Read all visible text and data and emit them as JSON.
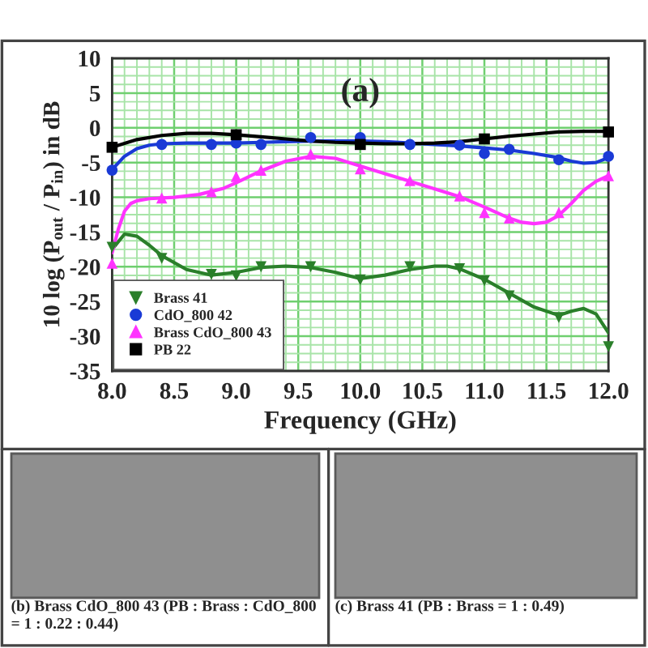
{
  "chart_data": {
    "type": "line",
    "title": "(a)",
    "xlabel": "Frequency (GHz)",
    "ylabel": "10 log (P$_{out}$ / P$_{in}$) in dB",
    "xlim": [
      8.0,
      12.0
    ],
    "xticks": [
      {
        "value": 8.0,
        "label": "8.0"
      },
      {
        "value": 8.1,
        "label": null
      },
      {
        "value": 8.2,
        "label": null
      },
      {
        "value": 8.3,
        "label": null
      },
      {
        "value": 8.4,
        "label": null
      },
      {
        "value": 8.5,
        "label": "8.5"
      },
      {
        "value": 8.6,
        "label": null
      },
      {
        "value": 8.7,
        "label": null
      },
      {
        "value": 8.8,
        "label": null
      },
      {
        "value": 8.9,
        "label": null
      },
      {
        "value": 9.0,
        "label": "9.0"
      },
      {
        "value": 9.1,
        "label": null
      },
      {
        "value": 9.2,
        "label": null
      },
      {
        "value": 9.3,
        "label": null
      },
      {
        "value": 9.4,
        "label": null
      },
      {
        "value": 9.5,
        "label": "9.5"
      },
      {
        "value": 9.6,
        "label": null
      },
      {
        "value": 9.7,
        "label": null
      },
      {
        "value": 9.8,
        "label": null
      },
      {
        "value": 9.9,
        "label": null
      },
      {
        "value": 10.0,
        "label": "10.0"
      },
      {
        "value": 10.1,
        "label": null
      },
      {
        "value": 10.2,
        "label": null
      },
      {
        "value": 10.3,
        "label": null
      },
      {
        "value": 10.4,
        "label": null
      },
      {
        "value": 10.5,
        "label": "10.5"
      },
      {
        "value": 10.6,
        "label": null
      },
      {
        "value": 10.7,
        "label": null
      },
      {
        "value": 10.8,
        "label": null
      },
      {
        "value": 10.9,
        "label": null
      },
      {
        "value": 11.0,
        "label": "11.0"
      },
      {
        "value": 11.1,
        "label": null
      },
      {
        "value": 11.2,
        "label": null
      },
      {
        "value": 11.3,
        "label": null
      },
      {
        "value": 11.4,
        "label": null
      },
      {
        "value": 11.5,
        "label": "11.5"
      },
      {
        "value": 11.6,
        "label": null
      },
      {
        "value": 11.7,
        "label": null
      },
      {
        "value": 11.8,
        "label": null
      },
      {
        "value": 11.9,
        "label": null
      },
      {
        "value": 12.0,
        "label": "12.0"
      }
    ],
    "ylim": [
      -35,
      10
    ],
    "yticks": [
      -35,
      {
        "value": -33.75,
        "label": null
      },
      {
        "value": -32.5,
        "label": null
      },
      {
        "value": -31.25,
        "label": null
      },
      -30,
      {
        "value": -28.75,
        "label": null
      },
      {
        "value": -27.5,
        "label": null
      },
      {
        "value": -26.25,
        "label": null
      },
      -25,
      {
        "value": -23.75,
        "label": null
      },
      {
        "value": -22.5,
        "label": null
      },
      {
        "value": -21.25,
        "label": null
      },
      -20,
      {
        "value": -18.75,
        "label": null
      },
      {
        "value": -17.5,
        "label": null
      },
      {
        "value": -16.25,
        "label": null
      },
      -15,
      {
        "value": -13.75,
        "label": null
      },
      {
        "value": -12.5,
        "label": null
      },
      {
        "value": -11.25,
        "label": null
      },
      -10,
      {
        "value": -8.75,
        "label": null
      },
      {
        "value": -7.5,
        "label": null
      },
      {
        "value": -6.25,
        "label": null
      },
      -5,
      {
        "value": -3.75,
        "label": null
      },
      {
        "value": -2.5,
        "label": null
      },
      {
        "value": -1.25,
        "label": null
      },
      0,
      {
        "value": 1.25,
        "label": null
      },
      {
        "value": 2.5,
        "label": null
      },
      {
        "value": 3.75,
        "label": null
      },
      5,
      {
        "value": 6.25,
        "label": null
      },
      {
        "value": 7.5,
        "label": null
      },
      {
        "value": 8.75,
        "label": null
      },
      10
    ],
    "grid": true,
    "legend": "bottom left",
    "series": [
      {
        "color": "#2a7f2a",
        "marker": "none",
        "x": [
          8.0,
          8.1,
          8.2,
          8.3,
          8.4,
          8.6,
          8.8,
          9.0,
          9.2,
          9.4,
          9.6,
          9.8,
          10.0,
          10.2,
          10.4,
          10.6,
          10.7,
          10.8,
          11.0,
          11.2,
          11.4,
          11.6,
          11.7,
          11.8,
          11.9,
          12.0
        ],
        "values": [
          -17.5,
          -15.3,
          -15.6,
          -16.9,
          -18.4,
          -20.4,
          -21.2,
          -20.8,
          -20.1,
          -19.9,
          -20.1,
          -20.8,
          -21.7,
          -21.2,
          -20.4,
          -19.9,
          -19.9,
          -20.3,
          -21.8,
          -23.8,
          -25.8,
          -27.0,
          -26.4,
          -26.0,
          -26.8,
          -29.5
        ]
      },
      {
        "color": "#1a3ad6",
        "marker": "none",
        "x": [
          8.0,
          8.1,
          8.2,
          8.3,
          8.4,
          8.6,
          8.8,
          9.0,
          9.2,
          9.4,
          9.6,
          9.8,
          10.0,
          10.2,
          10.4,
          10.6,
          10.8,
          11.0,
          11.2,
          11.4,
          11.6,
          11.7,
          11.8,
          11.9,
          12.0
        ],
        "values": [
          -6.0,
          -4.1,
          -3.0,
          -2.5,
          -2.3,
          -2.2,
          -2.2,
          -2.2,
          -2.1,
          -2.0,
          -1.9,
          -1.9,
          -1.9,
          -2.0,
          -2.2,
          -2.4,
          -2.6,
          -2.9,
          -3.2,
          -3.7,
          -4.3,
          -4.8,
          -5.1,
          -5.0,
          -4.3
        ]
      },
      {
        "color": "#ff33ff",
        "marker": "none",
        "x": [
          8.0,
          8.05,
          8.1,
          8.15,
          8.2,
          8.3,
          8.5,
          8.7,
          8.9,
          9.0,
          9.2,
          9.4,
          9.6,
          9.8,
          10.0,
          10.2,
          10.4,
          10.6,
          10.8,
          11.0,
          11.2,
          11.3,
          11.4,
          11.5,
          11.6,
          11.7,
          11.8,
          11.9,
          12.0
        ],
        "values": [
          -18.0,
          -14.6,
          -12.0,
          -10.9,
          -10.5,
          -10.2,
          -10.0,
          -9.6,
          -8.7,
          -7.9,
          -6.2,
          -4.8,
          -4.1,
          -4.4,
          -5.5,
          -6.6,
          -7.7,
          -8.8,
          -9.9,
          -11.4,
          -13.0,
          -13.6,
          -13.8,
          -13.6,
          -12.6,
          -10.9,
          -9.0,
          -7.7,
          -6.9
        ]
      },
      {
        "color": "#000000",
        "marker": "none",
        "x": [
          8.0,
          8.2,
          8.4,
          8.6,
          8.8,
          9.0,
          9.2,
          9.4,
          9.6,
          9.8,
          10.0,
          10.2,
          10.4,
          10.6,
          10.8,
          11.0,
          11.2,
          11.4,
          11.6,
          11.8,
          12.0
        ],
        "values": [
          -2.8,
          -1.7,
          -1.1,
          -0.8,
          -0.8,
          -1.0,
          -1.3,
          -1.6,
          -1.9,
          -2.1,
          -2.2,
          -2.3,
          -2.3,
          -2.2,
          -2.0,
          -1.6,
          -1.2,
          -0.9,
          -0.6,
          -0.5,
          -0.5
        ]
      },
      {
        "type": "scatter",
        "name": "Brass 41",
        "color": "#2a7f2a",
        "marker": "triangle_down",
        "x": [
          8.0,
          8.4,
          8.8,
          9.0,
          9.2,
          9.6,
          10.0,
          10.4,
          10.8,
          11.0,
          11.2,
          11.6,
          12.0
        ],
        "values": [
          -17.2,
          -18.8,
          -21.1,
          -21.3,
          -20.0,
          -20.0,
          -21.9,
          -20.0,
          -20.3,
          -22.0,
          -24.2,
          -27.3,
          -31.5
        ]
      },
      {
        "type": "scatter",
        "name": "CdO_800 42",
        "color": "#1a3ad6",
        "marker": "circle",
        "x": [
          8.0,
          8.4,
          8.8,
          9.0,
          9.2,
          9.6,
          10.0,
          10.4,
          10.8,
          11.0,
          11.2,
          11.6,
          12.0
        ],
        "values": [
          -6.1,
          -2.4,
          -2.4,
          -2.2,
          -2.4,
          -1.4,
          -1.4,
          -2.4,
          -2.5,
          -3.7,
          -3.1,
          -4.6,
          -4.1
        ]
      },
      {
        "type": "scatter",
        "name": "Brass CdO_800 43",
        "color": "#ff33ff",
        "marker": "triangle",
        "x": [
          8.0,
          8.4,
          8.8,
          9.0,
          9.2,
          9.6,
          10.0,
          10.4,
          10.8,
          11.0,
          11.2,
          11.6,
          12.0
        ],
        "values": [
          -19.5,
          -10.1,
          -9.2,
          -7.0,
          -6.1,
          -3.8,
          -5.9,
          -7.6,
          -9.8,
          -12.2,
          -13.0,
          -12.2,
          -6.9
        ]
      },
      {
        "type": "scatter",
        "name": "PB 22",
        "color": "#000000",
        "marker": "square",
        "x": [
          8.0,
          9.0,
          10.0,
          11.0,
          12.0
        ],
        "values": [
          -2.8,
          -1.0,
          -2.4,
          -1.6,
          -0.6
        ]
      }
    ],
    "annotations": [
      "(b) Brass CdO_800 43 (PB : Brass : CdO_800 = 1 : 0.22 : 0.44)",
      "(c) Brass 41 (PB : Brass = 1 : 0.49)"
    ]
  }
}
